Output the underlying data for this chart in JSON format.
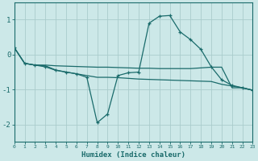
{
  "xlabel": "Humidex (Indice chaleur)",
  "background_color": "#cce8e8",
  "grid_color": "#aacccc",
  "line_color": "#1a6b6b",
  "xlim": [
    0,
    23
  ],
  "ylim": [
    -2.5,
    1.5
  ],
  "yticks": [
    -2,
    -1,
    0,
    1
  ],
  "xticks": [
    0,
    1,
    2,
    3,
    4,
    5,
    6,
    7,
    8,
    9,
    10,
    11,
    12,
    13,
    14,
    15,
    16,
    17,
    18,
    19,
    20,
    21,
    22,
    23
  ],
  "line1_x": [
    0,
    1,
    2,
    3,
    4,
    5,
    6,
    7,
    8,
    9,
    10,
    11,
    12,
    13,
    14,
    15,
    16,
    17,
    18,
    19,
    20,
    21,
    22,
    23
  ],
  "line1_y": [
    0.2,
    -0.25,
    -0.3,
    -0.35,
    -0.45,
    -0.5,
    -0.55,
    -0.65,
    -1.95,
    -1.7,
    -0.6,
    -0.52,
    -0.5,
    0.9,
    1.1,
    1.12,
    0.65,
    0.43,
    0.15,
    -0.35,
    -0.72,
    -0.88,
    -0.95,
    -1.02
  ],
  "line2_x": [
    0,
    1,
    2,
    3,
    4,
    5,
    6,
    7,
    8,
    9,
    10,
    11,
    12,
    13,
    14,
    15,
    16,
    17,
    18,
    19,
    20,
    21,
    22,
    23
  ],
  "line2_y": [
    0.2,
    -0.25,
    -0.3,
    -0.3,
    -0.32,
    -0.33,
    -0.34,
    -0.35,
    -0.36,
    -0.36,
    -0.37,
    -0.38,
    -0.39,
    -0.39,
    -0.4,
    -0.4,
    -0.4,
    -0.4,
    -0.38,
    -0.36,
    -0.36,
    -0.95,
    -0.95,
    -1.02
  ],
  "line3_x": [
    0,
    1,
    2,
    3,
    4,
    5,
    6,
    7,
    8,
    9,
    10,
    11,
    12,
    13,
    14,
    15,
    16,
    17,
    18,
    19,
    20,
    21,
    22,
    23
  ],
  "line3_y": [
    0.2,
    -0.25,
    -0.3,
    -0.32,
    -0.44,
    -0.5,
    -0.55,
    -0.6,
    -0.65,
    -0.65,
    -0.66,
    -0.68,
    -0.7,
    -0.71,
    -0.72,
    -0.73,
    -0.74,
    -0.75,
    -0.76,
    -0.77,
    -0.85,
    -0.9,
    -0.95,
    -1.02
  ]
}
